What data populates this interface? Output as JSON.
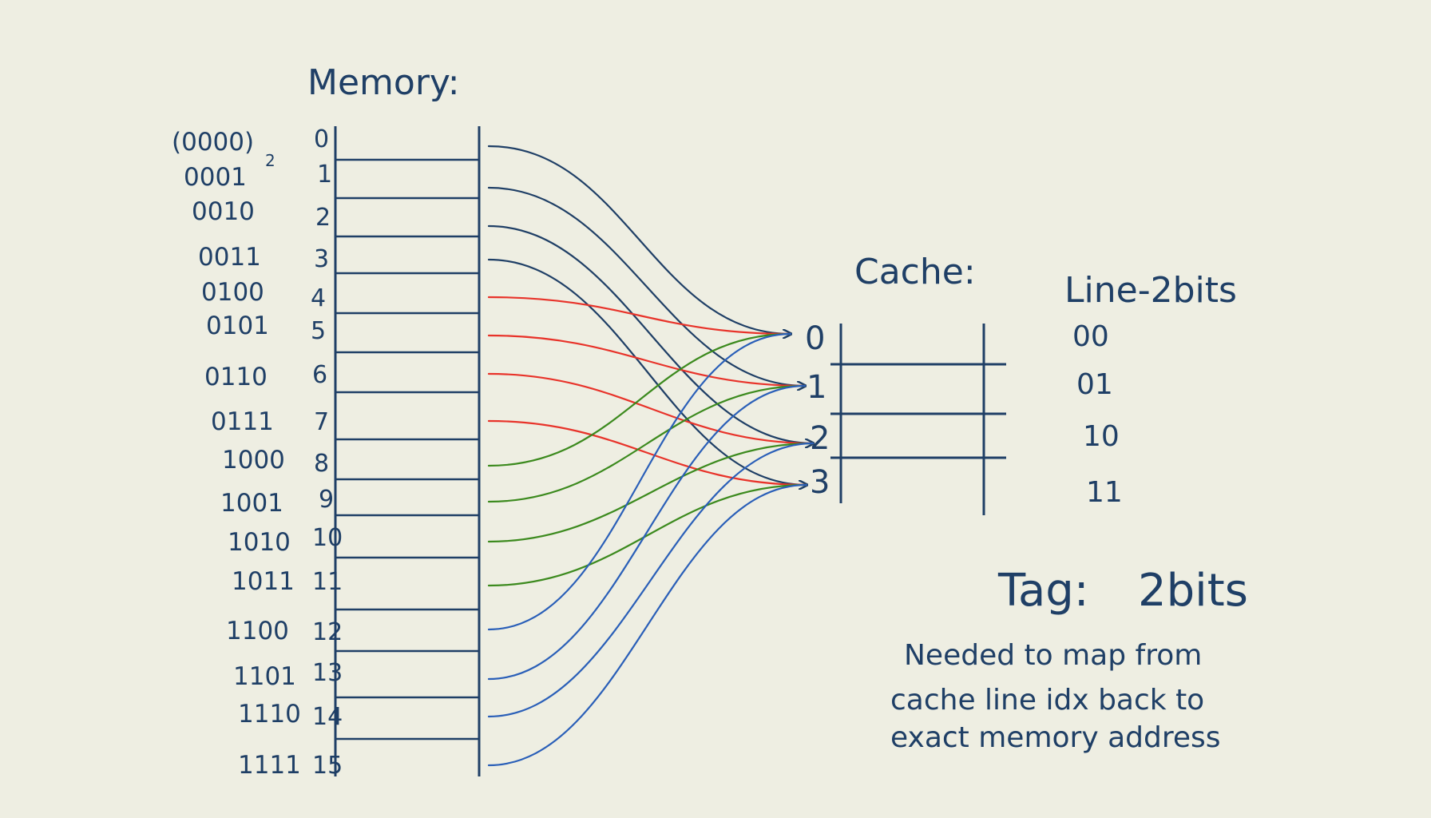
{
  "memory": {
    "title": "Memory:",
    "binary_suffix": "2",
    "rows": [
      {
        "binary": "(0000)",
        "index": "0"
      },
      {
        "binary": "0001",
        "index": "1"
      },
      {
        "binary": "0010",
        "index": "2"
      },
      {
        "binary": "0011",
        "index": "3"
      },
      {
        "binary": "0100",
        "index": "4"
      },
      {
        "binary": "0101",
        "index": "5"
      },
      {
        "binary": "0110",
        "index": "6"
      },
      {
        "binary": "0111",
        "index": "7"
      },
      {
        "binary": "1000",
        "index": "8"
      },
      {
        "binary": "1001",
        "index": "9"
      },
      {
        "binary": "1010",
        "index": "10"
      },
      {
        "binary": "1011",
        "index": "11"
      },
      {
        "binary": "1100",
        "index": "12"
      },
      {
        "binary": "1101",
        "index": "13"
      },
      {
        "binary": "1110",
        "index": "14"
      },
      {
        "binary": "1111",
        "index": "15"
      }
    ]
  },
  "cache": {
    "title": "Cache:",
    "line_indices": [
      "0",
      "1",
      "2",
      "3"
    ],
    "line_bits_label": "Line-2bits",
    "line_bits": [
      "00",
      "01",
      "10",
      "11"
    ]
  },
  "tag": {
    "label": "Tag:",
    "value": "2bits",
    "note_lines": [
      "Needed to map from",
      "cache line idx back to",
      "exact memory address"
    ]
  },
  "mapping": {
    "rule": "cache line = memory index mod 4",
    "colors": {
      "group_0_3": "#1f3f66",
      "group_4_7": "#e8332a",
      "group_8_11": "#3c8a1e",
      "group_12_15": "#2a5fb8"
    }
  },
  "colors": {
    "background": "#eeeee2",
    "ink": "#1f3f66"
  }
}
